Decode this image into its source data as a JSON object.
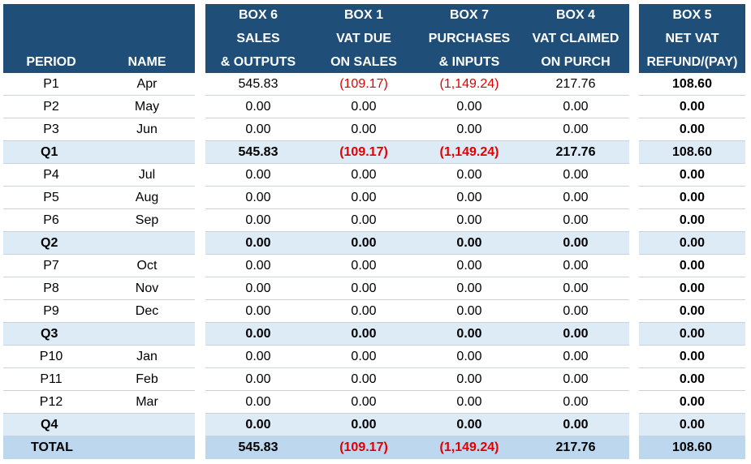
{
  "headers": {
    "period": "PERIOD",
    "name": "NAME",
    "box6": [
      "BOX 6",
      "SALES",
      "& OUTPUTS"
    ],
    "box1": [
      "BOX 1",
      "VAT DUE",
      "ON SALES"
    ],
    "box7": [
      "BOX 7",
      "PURCHASES",
      "& INPUTS"
    ],
    "box4": [
      "BOX 4",
      "VAT CLAIMED",
      "ON PURCH"
    ],
    "box5": [
      "BOX 5",
      "NET VAT",
      "REFUND/(PAY)"
    ]
  },
  "rows": [
    {
      "period": "P1",
      "name": "Apr",
      "box6": "545.83",
      "box1": "(109.17)",
      "box7": "(1,149.24)",
      "box4": "217.76",
      "box5": "108.60",
      "type": "p"
    },
    {
      "period": "P2",
      "name": "May",
      "box6": "0.00",
      "box1": "0.00",
      "box7": "0.00",
      "box4": "0.00",
      "box5": "0.00",
      "type": "p"
    },
    {
      "period": "P3",
      "name": "Jun",
      "box6": "0.00",
      "box1": "0.00",
      "box7": "0.00",
      "box4": "0.00",
      "box5": "0.00",
      "type": "p"
    },
    {
      "period": "Q1",
      "name": "",
      "box6": "545.83",
      "box1": "(109.17)",
      "box7": "(1,149.24)",
      "box4": "217.76",
      "box5": "108.60",
      "type": "q"
    },
    {
      "period": "P4",
      "name": "Jul",
      "box6": "0.00",
      "box1": "0.00",
      "box7": "0.00",
      "box4": "0.00",
      "box5": "0.00",
      "type": "p"
    },
    {
      "period": "P5",
      "name": "Aug",
      "box6": "0.00",
      "box1": "0.00",
      "box7": "0.00",
      "box4": "0.00",
      "box5": "0.00",
      "type": "p"
    },
    {
      "period": "P6",
      "name": "Sep",
      "box6": "0.00",
      "box1": "0.00",
      "box7": "0.00",
      "box4": "0.00",
      "box5": "0.00",
      "type": "p"
    },
    {
      "period": "Q2",
      "name": "",
      "box6": "0.00",
      "box1": "0.00",
      "box7": "0.00",
      "box4": "0.00",
      "box5": "0.00",
      "type": "q"
    },
    {
      "period": "P7",
      "name": "Oct",
      "box6": "0.00",
      "box1": "0.00",
      "box7": "0.00",
      "box4": "0.00",
      "box5": "0.00",
      "type": "p"
    },
    {
      "period": "P8",
      "name": "Nov",
      "box6": "0.00",
      "box1": "0.00",
      "box7": "0.00",
      "box4": "0.00",
      "box5": "0.00",
      "type": "p"
    },
    {
      "period": "P9",
      "name": "Dec",
      "box6": "0.00",
      "box1": "0.00",
      "box7": "0.00",
      "box4": "0.00",
      "box5": "0.00",
      "type": "p"
    },
    {
      "period": "Q3",
      "name": "",
      "box6": "0.00",
      "box1": "0.00",
      "box7": "0.00",
      "box4": "0.00",
      "box5": "0.00",
      "type": "q"
    },
    {
      "period": "P10",
      "name": "Jan",
      "box6": "0.00",
      "box1": "0.00",
      "box7": "0.00",
      "box4": "0.00",
      "box5": "0.00",
      "type": "p"
    },
    {
      "period": "P11",
      "name": "Feb",
      "box6": "0.00",
      "box1": "0.00",
      "box7": "0.00",
      "box4": "0.00",
      "box5": "0.00",
      "type": "p"
    },
    {
      "period": "P12",
      "name": "Mar",
      "box6": "0.00",
      "box1": "0.00",
      "box7": "0.00",
      "box4": "0.00",
      "box5": "0.00",
      "type": "p"
    },
    {
      "period": "Q4",
      "name": "",
      "box6": "0.00",
      "box1": "0.00",
      "box7": "0.00",
      "box4": "0.00",
      "box5": "0.00",
      "type": "q"
    },
    {
      "period": "TOTAL",
      "name": "",
      "box6": "545.83",
      "box1": "(109.17)",
      "box7": "(1,149.24)",
      "box4": "217.76",
      "box5": "108.60",
      "type": "total"
    }
  ],
  "colors": {
    "header_bg": "#1f4e79",
    "quarter_bg": "#ddebf7",
    "total_bg": "#bdd7ee",
    "negative": "#e00000"
  }
}
